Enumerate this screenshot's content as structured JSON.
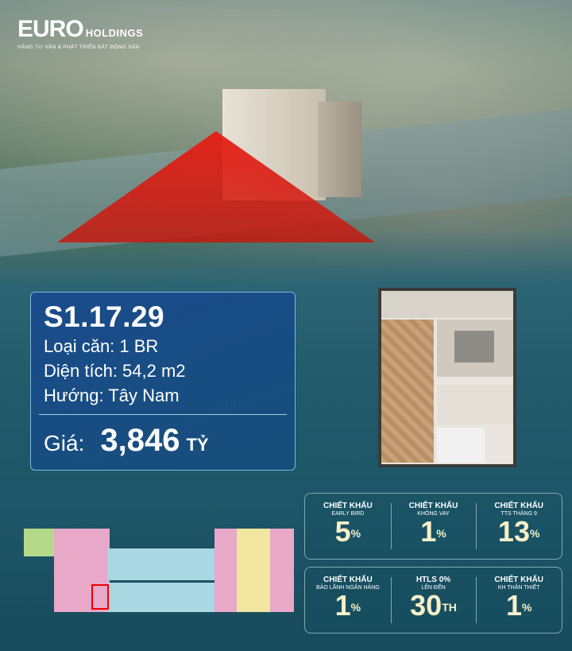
{
  "brand": {
    "logo_main": "EURO",
    "logo_suffix": "HOLDINGS",
    "tagline": "HÃNG TƯ VẤN & PHÁT TRIỂN BẤT ĐỘNG SẢN"
  },
  "unit": {
    "code": "S1.17.29",
    "type": "Loại căn: 1 BR",
    "area": "Diện tích: 54,2 m2",
    "direction": "Hướng: Tây Nam",
    "price_label": "Giá:",
    "price_value": "3,846",
    "price_unit": "TỶ"
  },
  "colors": {
    "accent_red": "#e01e14",
    "info_bg": "#1a4c8c",
    "number_gold": "#f7efc8"
  },
  "discounts": [
    {
      "title": "CHIẾT KHẤU",
      "subtitle": "EARLY BIRD",
      "value": "5",
      "suffix": "%"
    },
    {
      "title": "CHIẾT KHẤU",
      "subtitle": "KHÔNG VAY",
      "value": "1",
      "suffix": "%"
    },
    {
      "title": "CHIẾT KHẤU",
      "subtitle": "TTS THÁNG 9",
      "value": "13",
      "suffix": "%"
    },
    {
      "title": "CHIẾT KHẤU",
      "subtitle": "BẢO LÃNH NGÂN HÀNG",
      "value": "1",
      "suffix": "%"
    },
    {
      "title": "HTLS 0%",
      "subtitle": "LÊN ĐẾN",
      "value": "30",
      "suffix": "TH"
    },
    {
      "title": "CHIẾT KHẤU",
      "subtitle": "KH THÂN THIẾT",
      "value": "1",
      "suffix": "%"
    }
  ]
}
